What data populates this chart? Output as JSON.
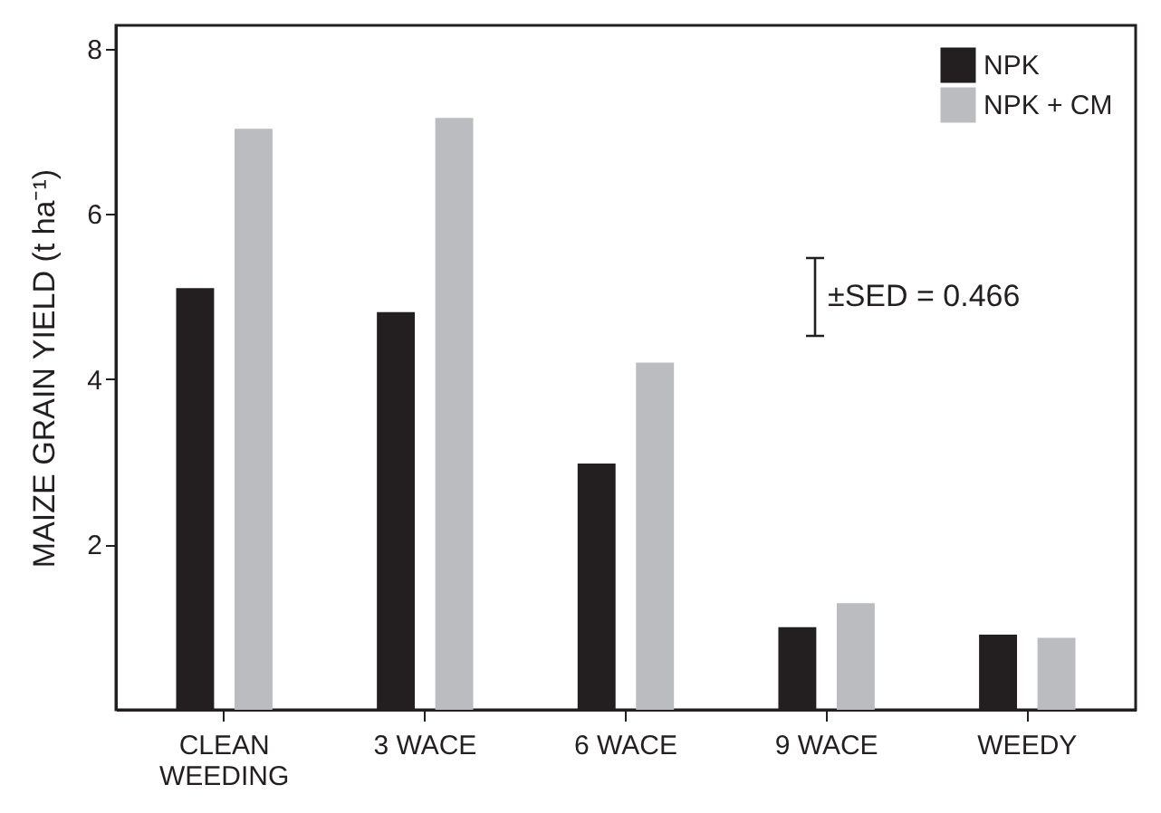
{
  "chart_data": {
    "type": "bar",
    "ylabel": "MAIZE GRAIN YIELD (t ha⁻¹)",
    "categories": [
      "CLEAN WEEDING",
      "3 WACE",
      "6 WACE",
      "9 WACE",
      "WEEDY"
    ],
    "series": [
      {
        "name": "NPK",
        "color": "#231f20",
        "values": [
          5.1,
          4.81,
          2.98,
          1.0,
          0.91
        ]
      },
      {
        "name": "NPK + CM",
        "color": "#bbbcbf",
        "values": [
          7.03,
          7.16,
          4.2,
          1.29,
          0.87
        ]
      }
    ],
    "ylim": [
      0,
      8.28
    ],
    "yticks": [
      2,
      4,
      6,
      8
    ],
    "grid": false,
    "legend": "top right",
    "annotations": [
      "±SED = 0.466"
    ]
  }
}
